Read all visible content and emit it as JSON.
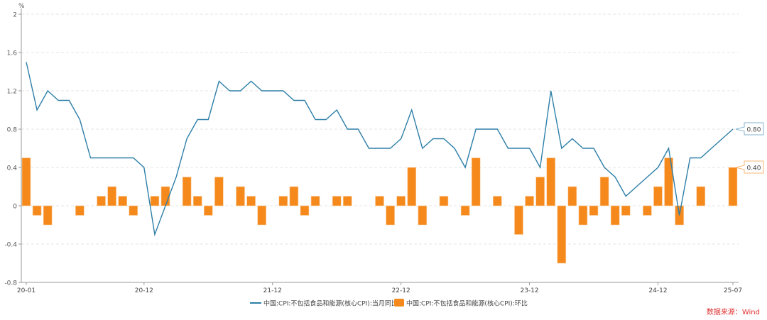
{
  "chart_data": {
    "type": "bar+line",
    "yunit": "%",
    "ylim": [
      -0.8,
      2.0
    ],
    "yticks": [
      -0.8,
      -0.4,
      0,
      0.4,
      0.8,
      1.2,
      1.6,
      2
    ],
    "ytick_labels": [
      "-0.8",
      "-0.4",
      "0",
      "0.4",
      "0.8",
      "1.2",
      "1.6",
      "2"
    ],
    "grid": true,
    "legend_position": "bottom",
    "xtick_labels": [
      "20-01",
      "20-12",
      "21-12",
      "22-12",
      "23-12",
      "24-12",
      "25-07"
    ],
    "x": [
      "20-01",
      "20-02",
      "20-03",
      "20-04",
      "20-05",
      "20-06",
      "20-07",
      "20-08",
      "20-09",
      "20-10",
      "20-11",
      "20-12",
      "21-01",
      "21-02",
      "21-03",
      "21-04",
      "21-05",
      "21-06",
      "21-07",
      "21-08",
      "21-09",
      "21-10",
      "21-11",
      "21-12",
      "22-01",
      "22-02",
      "22-03",
      "22-04",
      "22-05",
      "22-06",
      "22-07",
      "22-08",
      "22-09",
      "22-10",
      "22-11",
      "22-12",
      "23-01",
      "23-02",
      "23-03",
      "23-04",
      "23-05",
      "23-06",
      "23-07",
      "23-08",
      "23-09",
      "23-10",
      "23-11",
      "23-12",
      "24-01",
      "24-02",
      "24-03",
      "24-04",
      "24-05",
      "24-06",
      "24-07",
      "24-08",
      "24-09",
      "24-10",
      "24-11",
      "24-12",
      "25-01",
      "25-02",
      "25-03",
      "25-04",
      "25-05",
      "25-06",
      "25-07"
    ],
    "series": [
      {
        "name": "中国:CPI:不包括食品和能源(核心CPI):当月同比",
        "type": "line",
        "color": "#2e7fa8",
        "last_label": "0.80",
        "values": [
          1.5,
          1.0,
          1.2,
          1.1,
          1.1,
          0.9,
          0.5,
          0.5,
          0.5,
          0.5,
          0.5,
          0.4,
          -0.3,
          0.0,
          0.3,
          0.7,
          0.9,
          0.9,
          1.3,
          1.2,
          1.2,
          1.3,
          1.2,
          1.2,
          1.2,
          1.1,
          1.1,
          0.9,
          0.9,
          1.0,
          0.8,
          0.8,
          0.6,
          0.6,
          0.6,
          0.7,
          1.0,
          0.6,
          0.7,
          0.7,
          0.6,
          0.4,
          0.8,
          0.8,
          0.8,
          0.6,
          0.6,
          0.6,
          0.4,
          1.2,
          0.6,
          0.7,
          0.6,
          0.6,
          0.4,
          0.3,
          0.1,
          0.2,
          0.3,
          0.4,
          0.6,
          -0.1,
          0.5,
          0.5,
          0.6,
          0.7,
          0.8
        ]
      },
      {
        "name": "中国:CPI:不包括食品和能源(核心CPI):环比",
        "type": "bar",
        "color": "#f5891c",
        "last_label": "0.40",
        "values": [
          0.5,
          -0.1,
          -0.2,
          0,
          0,
          -0.1,
          0,
          0.1,
          0.2,
          0.1,
          -0.1,
          0,
          0.1,
          0.2,
          0,
          0.3,
          0.1,
          -0.1,
          0.3,
          0,
          0.2,
          0.1,
          -0.2,
          0,
          0.1,
          0.2,
          -0.1,
          0.1,
          0,
          0.1,
          0.1,
          0,
          0,
          0.1,
          -0.2,
          0.1,
          0.4,
          -0.2,
          0,
          0.1,
          0,
          -0.1,
          0.5,
          0,
          0.1,
          0,
          -0.3,
          0.1,
          0.3,
          0.5,
          -0.6,
          0.2,
          -0.2,
          -0.1,
          0.3,
          -0.2,
          -0.1,
          0,
          -0.1,
          0.2,
          0.5,
          -0.2,
          0,
          0.2,
          0,
          0,
          0.4
        ]
      }
    ]
  },
  "source": "数据来源：Wind"
}
